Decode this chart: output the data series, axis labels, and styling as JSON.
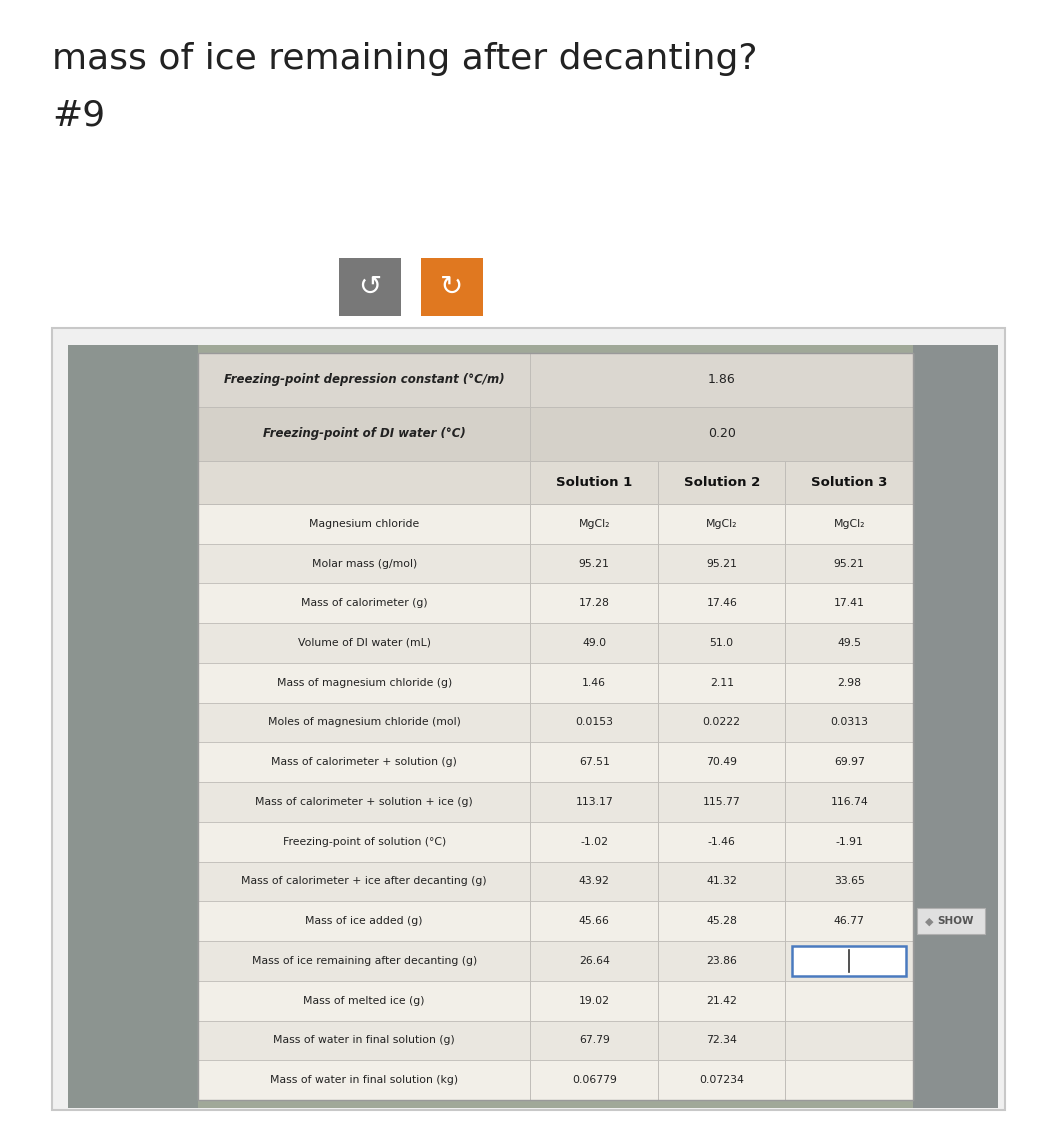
{
  "title_line1": "mass of ice remaining after decanting?",
  "title_line2": "#9",
  "title_fontsize": 26,
  "title_color": "#222222",
  "bg_color": "#f5f5f5",
  "inner_bg": "#ffffff",
  "button1_color": "#787878",
  "button2_color": "#e07820",
  "top_rows": [
    [
      "Freezing-point depression constant (°C/m)",
      "1.86"
    ],
    [
      "Freezing-point of DI water (°C)",
      "0.20"
    ]
  ],
  "col_headers": [
    "",
    "Solution 1",
    "Solution 2",
    "Solution 3"
  ],
  "rows": [
    [
      "Magnesium chloride",
      "MgCl₂",
      "MgCl₂",
      "MgCl₂"
    ],
    [
      "Molar mass (g/mol)",
      "95.21",
      "95.21",
      "95.21"
    ],
    [
      "Mass of calorimeter (g)",
      "17.28",
      "17.46",
      "17.41"
    ],
    [
      "Volume of DI water (mL)",
      "49.0",
      "51.0",
      "49.5"
    ],
    [
      "Mass of magnesium chloride (g)",
      "1.46",
      "2.11",
      "2.98"
    ],
    [
      "Moles of magnesium chloride (mol)",
      "0.0153",
      "0.0222",
      "0.0313"
    ],
    [
      "Mass of calorimeter + solution (g)",
      "67.51",
      "70.49",
      "69.97"
    ],
    [
      "Mass of calorimeter + solution + ice (g)",
      "113.17",
      "115.77",
      "116.74"
    ],
    [
      "Freezing-point of solution (°C)",
      "-1.02",
      "-1.46",
      "-1.91"
    ],
    [
      "Mass of calorimeter + ice after decanting (g)",
      "43.92",
      "41.32",
      "33.65"
    ],
    [
      "Mass of ice added (g)",
      "45.66",
      "45.28",
      "46.77"
    ],
    [
      "Mass of ice remaining after decanting (g)",
      "26.64",
      "23.86",
      ""
    ],
    [
      "Mass of melted ice (g)",
      "19.02",
      "21.42",
      ""
    ],
    [
      "Mass of water in final solution (g)",
      "67.79",
      "72.34",
      ""
    ],
    [
      "Mass of water in final solution (kg)",
      "0.06779",
      "0.07234",
      ""
    ]
  ],
  "highlight_row": 11,
  "photo_bg": "#b8b8a8",
  "photo_left_extra_bg": "#8a9090",
  "table_inner_bg": "#e8e4dc",
  "table_header_bg": "#ccc8c0",
  "show_row": 10
}
